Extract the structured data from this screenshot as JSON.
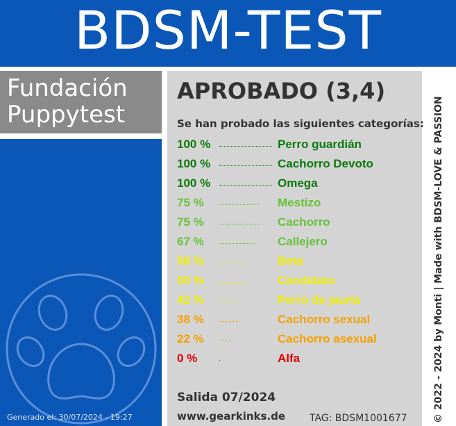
{
  "header": {
    "title": "BDSM-TEST"
  },
  "organization": {
    "line1": "Fundación",
    "line2": "Puppytest"
  },
  "generated_label": "Generado el: 30/07/2024 - 19:27",
  "result": {
    "verdict": "APROBADO (3,4)",
    "intro": "Se han probado las siguientes categorías:",
    "rows": [
      {
        "percent": "100 %",
        "name": "Perro guardián",
        "value": 100,
        "color": "#0a7a0a"
      },
      {
        "percent": "100 %",
        "name": "Cachorro Devoto",
        "value": 100,
        "color": "#0a7a0a"
      },
      {
        "percent": "100 %",
        "name": "Omega",
        "value": 100,
        "color": "#0a7a0a"
      },
      {
        "percent": "75 %",
        "name": "Mestizo",
        "value": 75,
        "color": "#66c23a"
      },
      {
        "percent": "75 %",
        "name": "Cachorro",
        "value": 75,
        "color": "#66c23a"
      },
      {
        "percent": "67 %",
        "name": "Callejero",
        "value": 67,
        "color": "#66c23a"
      },
      {
        "percent": "58 %",
        "name": "Beta",
        "value": 58,
        "color": "#f0f000"
      },
      {
        "percent": "50 %",
        "name": "Candidato",
        "value": 50,
        "color": "#f0f000"
      },
      {
        "percent": "42 %",
        "name": "Perro de jauría",
        "value": 42,
        "color": "#f0f000"
      },
      {
        "percent": "38 %",
        "name": "Cachorro sexual",
        "value": 38,
        "color": "#f5a000"
      },
      {
        "percent": "22 %",
        "name": "Cachorro asexual",
        "value": 22,
        "color": "#f5a000"
      },
      {
        "percent": "0 %",
        "name": "Alfa",
        "value": 0,
        "color": "#e00000"
      }
    ],
    "release": "Salida 07/2024",
    "website": "www.gearkinks.de",
    "tag": "TAG: BDSM1001677"
  },
  "side_credit": "© 2022 - 2024 by Monti | Made with BDSM-LOVE & PASSION",
  "icons": {
    "paw": "paw-print-icon"
  }
}
